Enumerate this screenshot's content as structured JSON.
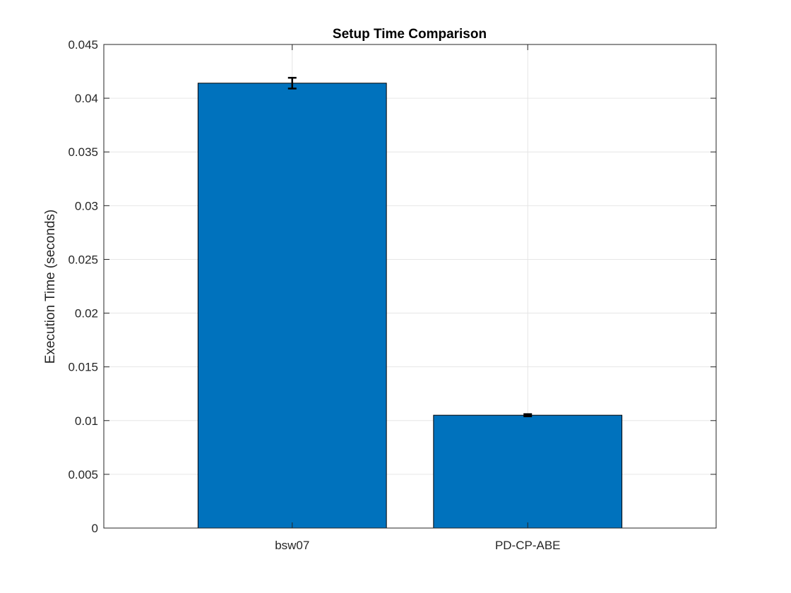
{
  "chart_data": {
    "type": "bar",
    "title": "Setup Time Comparison",
    "xlabel": "",
    "ylabel": "Execution Time (seconds)",
    "categories": [
      "bsw07",
      "PD-CP-ABE"
    ],
    "values": [
      0.0414,
      0.0105
    ],
    "error": [
      0.0005,
      0.0001
    ],
    "ylim": [
      0,
      0.045
    ],
    "yticks": [
      0,
      0.005,
      0.01,
      0.015,
      0.02,
      0.025,
      0.03,
      0.035,
      0.04,
      0.045
    ],
    "ytick_labels": [
      "0",
      "0.005",
      "0.01",
      "0.015",
      "0.02",
      "0.025",
      "0.03",
      "0.035",
      "0.04",
      "0.045"
    ],
    "xlim": [
      0.2,
      2.8
    ],
    "grid": true,
    "bar_color": "#0072BD",
    "errorbar_color": "#000000"
  }
}
